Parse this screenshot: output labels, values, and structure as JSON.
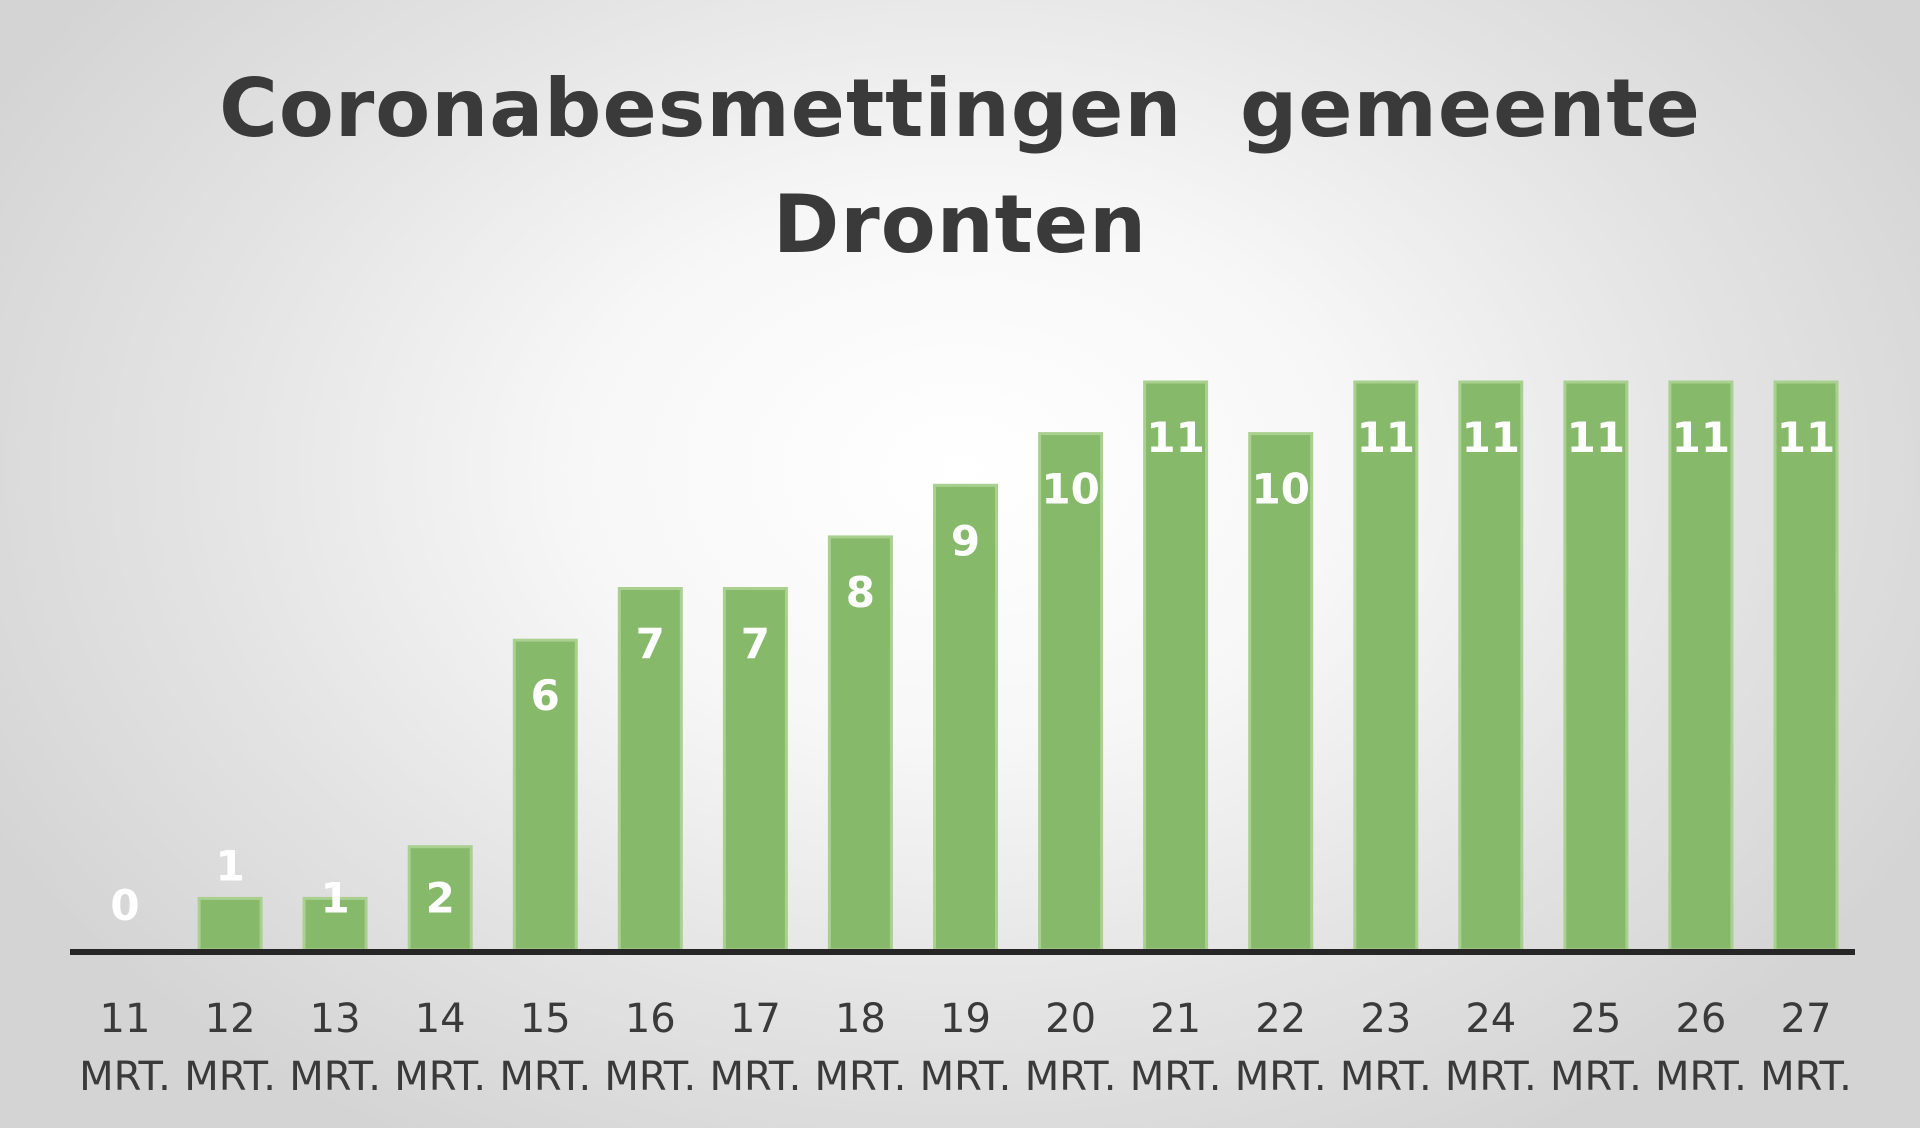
{
  "chart_data": {
    "type": "bar",
    "title_lines": [
      "Coronabesmettingen  gemeente",
      "Dronten"
    ],
    "categories": [
      [
        "11",
        "MRT."
      ],
      [
        "12",
        "MRT."
      ],
      [
        "13",
        "MRT."
      ],
      [
        "14",
        "MRT."
      ],
      [
        "15",
        "MRT."
      ],
      [
        "16",
        "MRT."
      ],
      [
        "17",
        "MRT."
      ],
      [
        "18",
        "MRT."
      ],
      [
        "19",
        "MRT."
      ],
      [
        "20",
        "MRT."
      ],
      [
        "21",
        "MRT."
      ],
      [
        "22",
        "MRT."
      ],
      [
        "23",
        "MRT."
      ],
      [
        "24",
        "MRT."
      ],
      [
        "25",
        "MRT."
      ],
      [
        "26",
        "MRT."
      ],
      [
        "27",
        "MRT."
      ]
    ],
    "values": [
      0,
      1,
      1,
      2,
      6,
      7,
      7,
      8,
      9,
      10,
      11,
      10,
      11,
      11,
      11,
      11,
      11
    ],
    "ylim": [
      0,
      11
    ],
    "grid": false,
    "legend": "none",
    "xlabel": "",
    "ylabel": "",
    "colors": {
      "bar": "#87b96b",
      "bar_edge": "#a9d08f",
      "data_label": "#ffffff",
      "axis_line": "#262626",
      "tick_label": "#3a3a3a",
      "title": "#3a3a3a"
    }
  }
}
